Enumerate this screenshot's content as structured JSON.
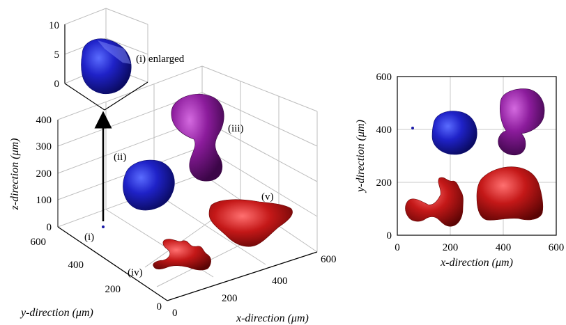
{
  "panels": {
    "left_3d": {
      "axes": {
        "z_label": "z-direction (μm)",
        "y_label": "y-direction (μm)",
        "x_label": "x-direction (μm)",
        "z_ticks": [
          "0",
          "100",
          "200",
          "300",
          "400"
        ],
        "y_ticks": [
          "600",
          "400",
          "200",
          "0"
        ],
        "x_ticks": [
          "0",
          "200",
          "400",
          "600"
        ]
      },
      "particles": [
        {
          "label": "(i)",
          "color": "#1a1aa8"
        },
        {
          "label": "(ii)",
          "color": "#1f22c8"
        },
        {
          "label": "(iii)",
          "color": "#8c1c9c"
        },
        {
          "label": "(iv)",
          "color": "#c41818"
        },
        {
          "label": "(v)",
          "color": "#c01515"
        }
      ],
      "inset": {
        "label": "(i) enlarged",
        "z_ticks": [
          "0",
          "5",
          "10"
        ],
        "color": "#1a1aa8"
      }
    },
    "right_2d": {
      "axes": {
        "x_label": "x-direction (μm)",
        "y_label": "y-direction (μm)",
        "x_ticks": [
          "0",
          "200",
          "400",
          "600"
        ],
        "y_ticks": [
          "0",
          "200",
          "400",
          "600"
        ],
        "xlim": [
          0,
          600
        ],
        "ylim": [
          0,
          600
        ],
        "grid": true
      },
      "colors": {
        "blue": "#1f22c8",
        "purple": "#8c1c9c",
        "red": "#c41818"
      }
    }
  }
}
